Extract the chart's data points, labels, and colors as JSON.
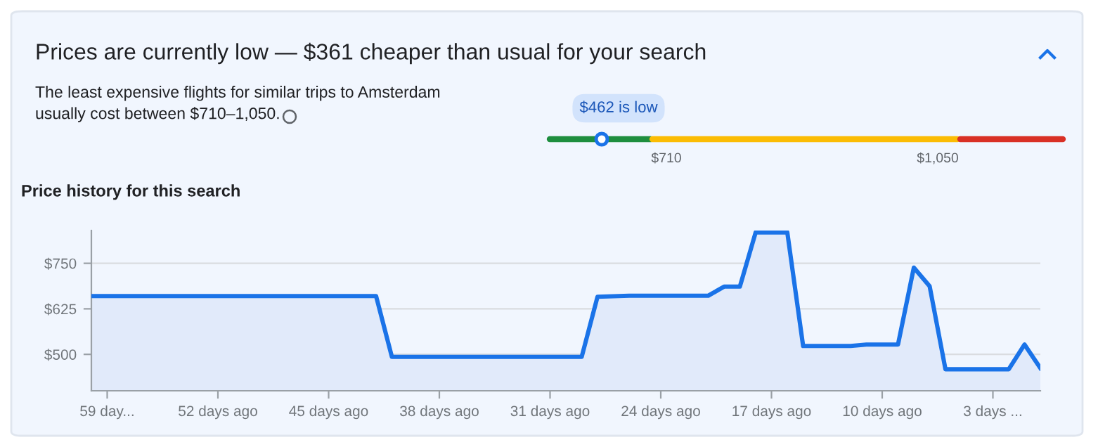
{
  "chart_data": {
    "type": "area",
    "title": "Price history for this search",
    "annotations": [
      "Prices are currently low — $361 cheaper than usual for your search",
      "The least expensive flights for similar trips to Amsterdam\nusually cost between $710–1,050.",
      "$462 is low",
      "$710",
      "$1,050"
    ],
    "x": [
      -60,
      -42,
      -41,
      -29,
      -28,
      -26,
      -21,
      -20,
      -19,
      -18,
      -16,
      -15,
      -12,
      -11,
      -9,
      -8,
      -7,
      -6,
      -2,
      -1,
      0
    ],
    "series": [
      {
        "color": "#1a73e8",
        "values": [
          660,
          660,
          493,
          493,
          658,
          661,
          661,
          686,
          686,
          835,
          835,
          523,
          523,
          527,
          527,
          738,
          687,
          459,
          459,
          527,
          462
        ]
      }
    ],
    "xlim": [
      -60,
      0
    ],
    "ylim": [
      400,
      840
    ],
    "xticks": [
      {
        "value": -59,
        "label": "59 day..."
      },
      {
        "value": -52,
        "label": "52 days ago"
      },
      {
        "value": -45,
        "label": "45 days ago"
      },
      {
        "value": -38,
        "label": "38 days ago"
      },
      {
        "value": -31,
        "label": "31 days ago"
      },
      {
        "value": -24,
        "label": "24 days ago"
      },
      {
        "value": -17,
        "label": "17 days ago"
      },
      {
        "value": -10,
        "label": "10 days ago"
      },
      {
        "value": -3,
        "label": "3 days ..."
      }
    ],
    "yticks": [
      {
        "value": 500,
        "label": "$500"
      },
      {
        "value": 625,
        "label": "$625"
      },
      {
        "value": 750,
        "label": "$750"
      }
    ],
    "grid": "y",
    "marker": "none",
    "line_style": "solid"
  }
}
